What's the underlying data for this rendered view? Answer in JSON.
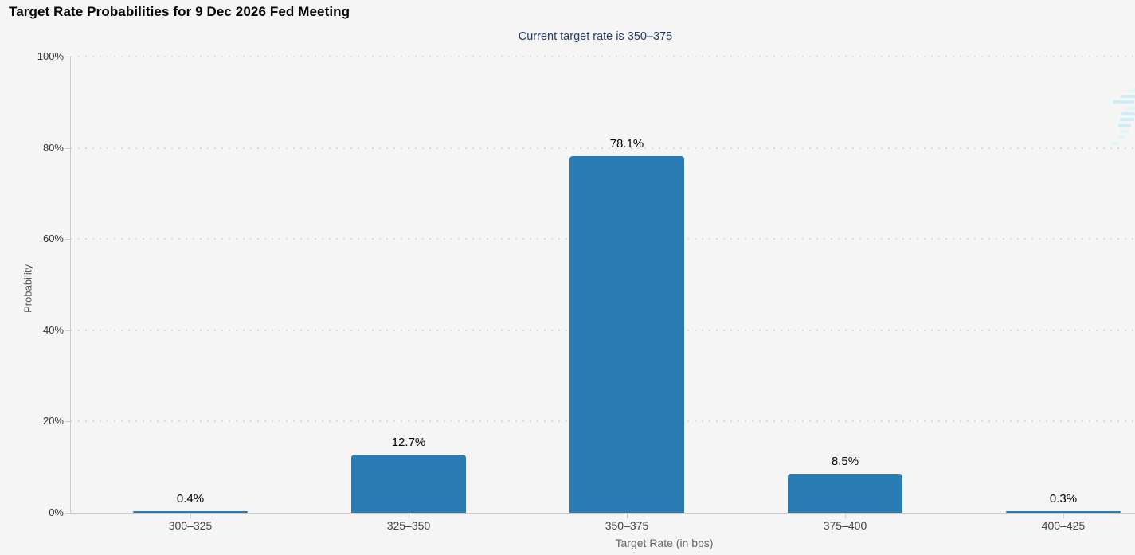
{
  "page": {
    "background": "#f5f5f6"
  },
  "chart_data": {
    "type": "bar",
    "title": "Target Rate Probabilities for 9 Dec 2026 Fed Meeting",
    "subtitle": "Current target rate is 350–375",
    "categories": [
      "300–325",
      "325–350",
      "350–375",
      "375–400",
      "400–425"
    ],
    "values": [
      0.4,
      12.7,
      78.1,
      8.5,
      0.3
    ],
    "value_labels": [
      "0.4%",
      "12.7%",
      "78.1%",
      "8.5%",
      "0.3%"
    ],
    "xlabel": "Target Rate (in bps)",
    "ylabel": "Probability",
    "ylim": [
      0,
      100
    ],
    "ytick_labels": [
      "0%",
      "20%",
      "40%",
      "60%",
      "80%",
      "100%"
    ],
    "grid": "dotted-horizontal",
    "legend": "none",
    "bar_color": "#2a7cb5",
    "title_color": "#000000",
    "subtitle_color": "#253a66",
    "gridline_color": "#dcdcdc",
    "axis_line_color": "#cccccc"
  },
  "watermark": {
    "icon": "cme-globe-watermark",
    "color": "#cfecf7"
  }
}
